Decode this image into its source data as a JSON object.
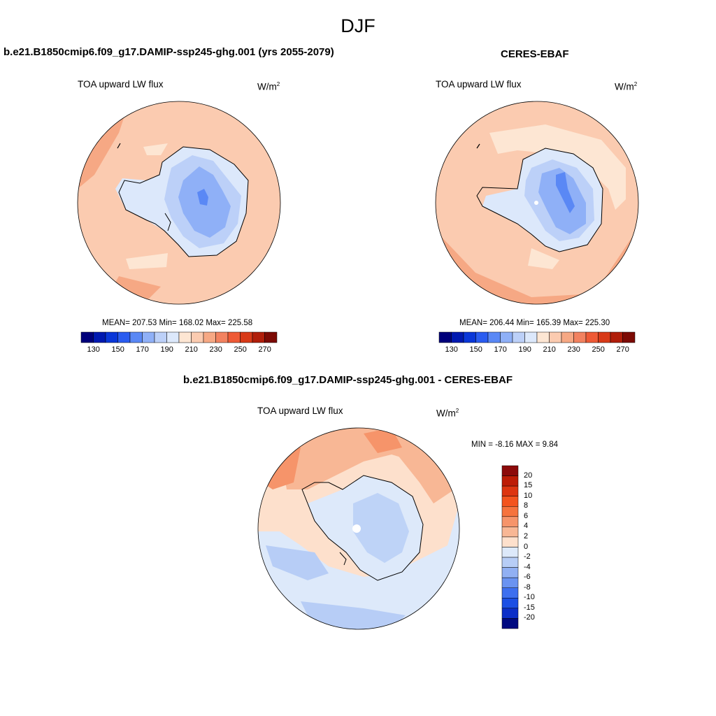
{
  "page": {
    "title": "DJF"
  },
  "panels": [
    {
      "title": "b.e21.B1850cmip6.f09_g17.DAMIP-ssp245-ghg.001 (yrs 2055-2079)",
      "variable": "TOA upward LW flux",
      "units_base": "W/m",
      "units_exp": "2",
      "stats": "MEAN= 207.53  Min= 168.02  Max= 225.58"
    },
    {
      "title": "CERES-EBAF",
      "variable": "TOA upward LW flux",
      "units_base": "W/m",
      "units_exp": "2",
      "stats": "MEAN= 206.44  Min= 165.39  Max= 225.30"
    },
    {
      "title": "b.e21.B1850cmip6.f09_g17.DAMIP-ssp245-ghg.001 - CERES-EBAF",
      "variable": "TOA upward LW flux",
      "units_base": "W/m",
      "units_exp": "2",
      "stats": "MIN =  -8.16 MAX =   9.84"
    }
  ],
  "abs_colorbar": {
    "colors": [
      "#00007a",
      "#0019b0",
      "#0a37d8",
      "#2a5cf0",
      "#5a88f5",
      "#8fb0f7",
      "#bcd0f8",
      "#dce8fb",
      "#fde6d3",
      "#fbcbb0",
      "#f6a884",
      "#f28260",
      "#ee5a36",
      "#d83a18",
      "#b01e0a",
      "#7c0a04"
    ],
    "ticks": [
      "130",
      "150",
      "170",
      "190",
      "210",
      "230",
      "250",
      "270"
    ]
  },
  "diff_colorbar": {
    "colors": [
      "#8c0a0a",
      "#bd1c06",
      "#dd3510",
      "#f3541e",
      "#f6733d",
      "#f6946a",
      "#f8b795",
      "#fde0cc",
      "#dde9fa",
      "#b7cdf6",
      "#91b0f3",
      "#6a93f1",
      "#3d6fef",
      "#1b4fe4",
      "#0b2ec8",
      "#000a80"
    ],
    "labels": [
      "20",
      "15",
      "10",
      "8",
      "6",
      "4",
      "2",
      "0",
      "-2",
      "-4",
      "-6",
      "-8",
      "-10",
      "-15",
      "-20"
    ]
  }
}
